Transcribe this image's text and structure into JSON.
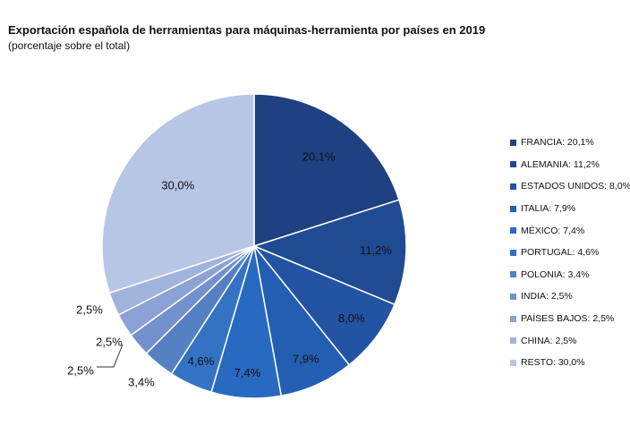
{
  "title": "Exportación española de herramientas para máquinas-herramienta por países en 2019",
  "subtitle": "(porcentaje sobre el total)",
  "chart_data": {
    "type": "pie",
    "title": "Exportación española de herramientas para máquinas-herramienta por países en 2019",
    "subtitle": "(porcentaje sobre el total)",
    "start_angle": "12 o'clock",
    "direction": "clockwise",
    "legend_position": "right",
    "slices": [
      {
        "name": "FRANCIA",
        "value": 20.1,
        "label": "20,1%",
        "legend": "FRANCIA: 20,1%",
        "color": "#1f4181"
      },
      {
        "name": "ALEMANIA",
        "value": 11.2,
        "label": "11,2%",
        "legend": "ALEMANIA: 11,2%",
        "color": "#204b93"
      },
      {
        "name": "ESTADOS UNIDOS",
        "value": 8.0,
        "label": "8,0%",
        "legend": "ESTADOS UNIDOS: 8,0%",
        "color": "#2254a3"
      },
      {
        "name": "ITALIA",
        "value": 7.9,
        "label": "7,9%",
        "legend": "ITALIA: 7,9%",
        "color": "#245eb3"
      },
      {
        "name": "MÉXICO",
        "value": 7.4,
        "label": "7,4%",
        "legend": "MÉXICO: 7,4%",
        "color": "#2869c1"
      },
      {
        "name": "PORTUGAL",
        "value": 4.6,
        "label": "4,6%",
        "legend": "PORTUGAL: 4,6%",
        "color": "#3473c4"
      },
      {
        "name": "POLONIA",
        "value": 3.4,
        "label": "3,4%",
        "legend": "POLONIA: 3,4%",
        "color": "#5580c3"
      },
      {
        "name": "INDIA",
        "value": 2.5,
        "label": "2,5%",
        "legend": "INDIA: 2,5%",
        "color": "#7391cc"
      },
      {
        "name": "PAÍSES BAJOS",
        "value": 2.5,
        "label": "2,5%",
        "legend": "PAÍSES BAJOS: 2,5%",
        "color": "#8aa2d5"
      },
      {
        "name": "CHINA",
        "value": 2.5,
        "label": "2,5%",
        "legend": "CHINA: 2,5%",
        "color": "#a0b3dc"
      },
      {
        "name": "RESTO",
        "value": 30.0,
        "label": "30,0%",
        "legend": "RESTO: 30,0%",
        "color": "#b7c6e4"
      }
    ]
  }
}
